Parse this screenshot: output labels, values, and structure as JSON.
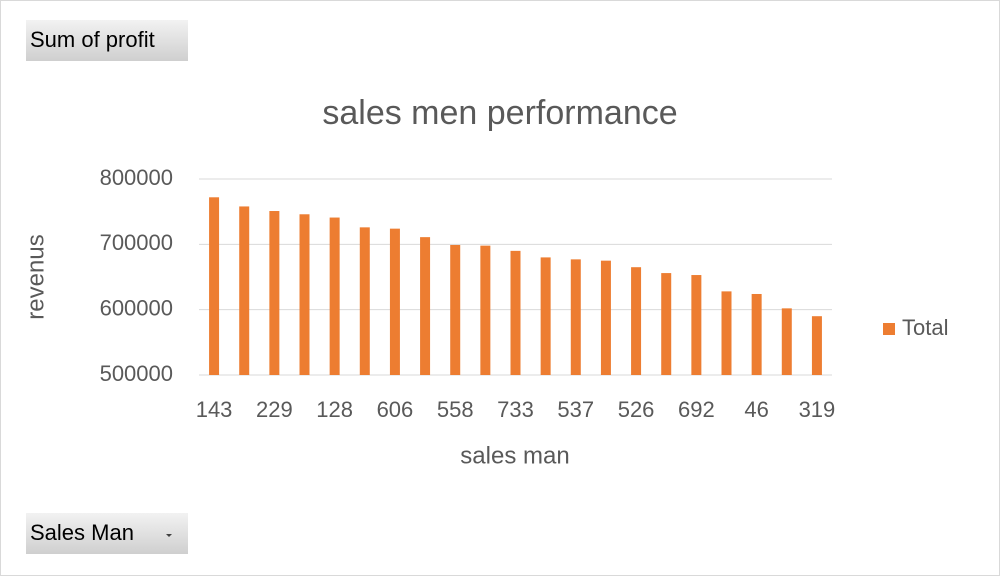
{
  "chart_data": {
    "type": "bar",
    "title": "sales men performance",
    "value_field": "Sum of profit",
    "axis_field": "Sales Man",
    "x_label": "sales man",
    "y_label": "revenus",
    "categories": [
      "143",
      null,
      "229",
      null,
      "128",
      null,
      "606",
      null,
      "558",
      null,
      "733",
      null,
      "537",
      null,
      "526",
      null,
      "692",
      null,
      "46",
      null,
      "319"
    ],
    "series": [
      {
        "name": "Total",
        "color": "#ed7d31",
        "values": [
          772000,
          758000,
          751000,
          746000,
          741000,
          726000,
          724000,
          711000,
          699000,
          698000,
          690000,
          680000,
          677000,
          675000,
          665000,
          656000,
          653000,
          628000,
          624000,
          602000,
          590000
        ]
      }
    ],
    "ylim": [
      500000,
      800000
    ],
    "yticks": [
      500000,
      600000,
      700000,
      800000
    ],
    "grid": true,
    "legend": "right"
  }
}
